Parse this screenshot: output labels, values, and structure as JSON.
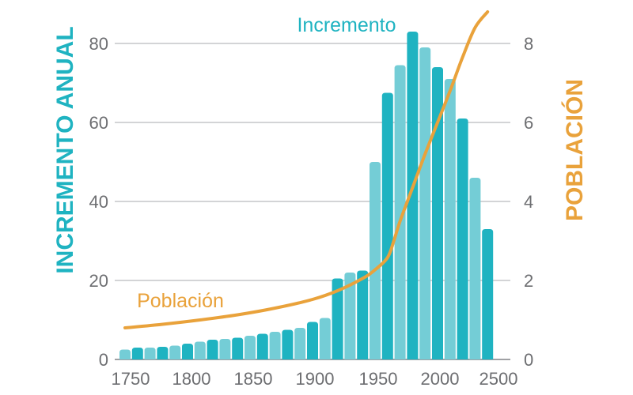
{
  "chart_data": {
    "type": "bar",
    "title": "",
    "xlabel": "",
    "ylabel": "INCREMENTO ANUAL",
    "y2label": "POBLACIÓN",
    "x_ticks": [
      "1750",
      "1800",
      "1850",
      "1900",
      "1950",
      "2000",
      "2500"
    ],
    "y_ticks": [
      "0",
      "20",
      "40",
      "60",
      "80"
    ],
    "y2_ticks": [
      "0",
      "2",
      "4",
      "6",
      "8"
    ],
    "ylim": [
      0,
      88
    ],
    "y2lim": [
      0,
      8.8
    ],
    "grid": true,
    "annotations": {
      "increment": "Incremento",
      "population": "Población"
    },
    "colors": {
      "bar_dark": "#1fb3c1",
      "bar_light": "#74cdd6",
      "line": "#e9a23b",
      "grid": "#a7a9ac"
    },
    "series": [
      {
        "name": "Incremento",
        "type": "bar",
        "values": [
          2.5,
          3,
          3,
          3.2,
          3.5,
          4,
          4.5,
          5,
          5.2,
          5.5,
          6,
          6.5,
          7,
          7.5,
          8,
          9.5,
          10.5,
          20.5,
          22,
          22.5,
          50,
          67.5,
          74.5,
          83,
          79,
          74,
          71,
          61,
          46,
          33
        ]
      },
      {
        "name": "Población",
        "type": "line",
        "x": [
          0,
          3,
          6,
          9,
          12,
          15,
          17,
          19,
          20,
          21,
          21.5,
          22,
          23,
          24,
          25,
          26,
          27,
          28,
          29
        ],
        "values": [
          0.8,
          0.89,
          1.0,
          1.13,
          1.3,
          1.52,
          1.74,
          2.05,
          2.27,
          2.58,
          3.0,
          3.5,
          4.35,
          5.2,
          6.0,
          6.8,
          7.65,
          8.4,
          8.8
        ]
      }
    ]
  }
}
